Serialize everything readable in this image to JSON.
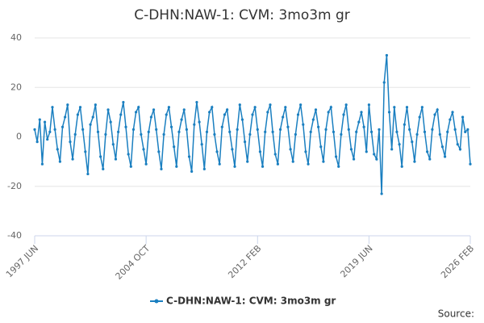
{
  "chart_data": {
    "type": "line",
    "title": "C-DHN:NAW-1: CVM: 3mo3m gr",
    "categories": [
      "1997 JUN",
      null,
      null,
      null,
      null,
      null,
      null,
      null,
      null,
      null,
      null,
      null,
      null,
      null,
      null,
      null,
      null,
      null,
      null,
      null,
      null,
      null,
      null,
      null,
      null,
      null,
      null,
      null,
      null,
      null,
      null,
      null,
      null,
      null,
      null,
      null,
      null,
      null,
      null,
      null,
      null,
      null,
      null,
      null,
      "2004 OCT",
      null,
      null,
      null,
      null,
      null,
      null,
      null,
      null,
      null,
      null,
      null,
      null,
      null,
      null,
      null,
      null,
      null,
      null,
      null,
      null,
      null,
      null,
      null,
      null,
      null,
      null,
      null,
      null,
      null,
      null,
      null,
      null,
      null,
      null,
      null,
      null,
      null,
      null,
      null,
      null,
      null,
      null,
      null,
      "2012 FEB",
      null,
      null,
      null,
      null,
      null,
      null,
      null,
      null,
      null,
      null,
      null,
      null,
      null,
      null,
      null,
      null,
      null,
      null,
      null,
      null,
      null,
      null,
      null,
      null,
      null,
      null,
      null,
      null,
      null,
      null,
      null,
      null,
      null,
      null,
      null,
      null,
      null,
      null,
      null,
      null,
      null,
      null,
      null,
      "2019 JUN",
      null,
      null,
      null,
      null,
      null,
      null,
      null,
      null,
      null,
      null,
      null,
      null,
      null,
      null,
      null,
      null,
      null,
      null,
      null,
      null,
      null,
      null,
      null,
      null,
      null,
      null,
      null,
      null,
      null,
      null,
      null,
      null,
      null,
      null,
      null,
      null,
      null,
      null,
      null,
      "2026 FEB"
    ],
    "series": [
      {
        "name": "C-DHN:NAW-1: CVM: 3mo3m gr",
        "color": "#1a7fc0",
        "values": [
          3,
          -2,
          7,
          -11,
          6,
          -1,
          2,
          12,
          3,
          -5,
          -10,
          4,
          8,
          13,
          -2,
          -9,
          1,
          9,
          12,
          3,
          -6,
          -15,
          5,
          8,
          13,
          2,
          -8,
          -13,
          1,
          11,
          6,
          -3,
          -9,
          2,
          9,
          14,
          4,
          -7,
          -12,
          3,
          10,
          12,
          1,
          -5,
          -11,
          2,
          8,
          11,
          3,
          -6,
          -13,
          1,
          9,
          12,
          4,
          -4,
          -12,
          2,
          7,
          11,
          3,
          -8,
          -14,
          5,
          14,
          6,
          -3,
          -13,
          2,
          10,
          12,
          1,
          -6,
          -11,
          4,
          9,
          11,
          2,
          -5,
          -12,
          3,
          13,
          7,
          -2,
          -10,
          1,
          9,
          12,
          3,
          -6,
          -12,
          2,
          10,
          13,
          2,
          -7,
          -11,
          3,
          8,
          12,
          4,
          -5,
          -10,
          1,
          9,
          13,
          5,
          -6,
          -11,
          2,
          7,
          11,
          4,
          -4,
          -10,
          3,
          10,
          12,
          2,
          -8,
          -12,
          1,
          9,
          13,
          3,
          -5,
          -9,
          2,
          6,
          10,
          4,
          -6,
          13,
          2,
          -7,
          -9,
          3,
          -23,
          22,
          33,
          10,
          -5,
          12,
          2,
          -3,
          -12,
          5,
          12,
          3,
          -2,
          -10,
          1,
          8,
          12,
          2,
          -6,
          -9,
          3,
          9,
          11,
          1,
          -4,
          -8,
          2,
          7,
          10,
          3,
          -3,
          -5,
          8,
          2,
          3,
          -11
        ]
      }
    ],
    "ylim": [
      -40,
      40
    ],
    "yticks": [
      -40,
      -20,
      0,
      20,
      40
    ],
    "grid": true,
    "source": "Source:"
  }
}
